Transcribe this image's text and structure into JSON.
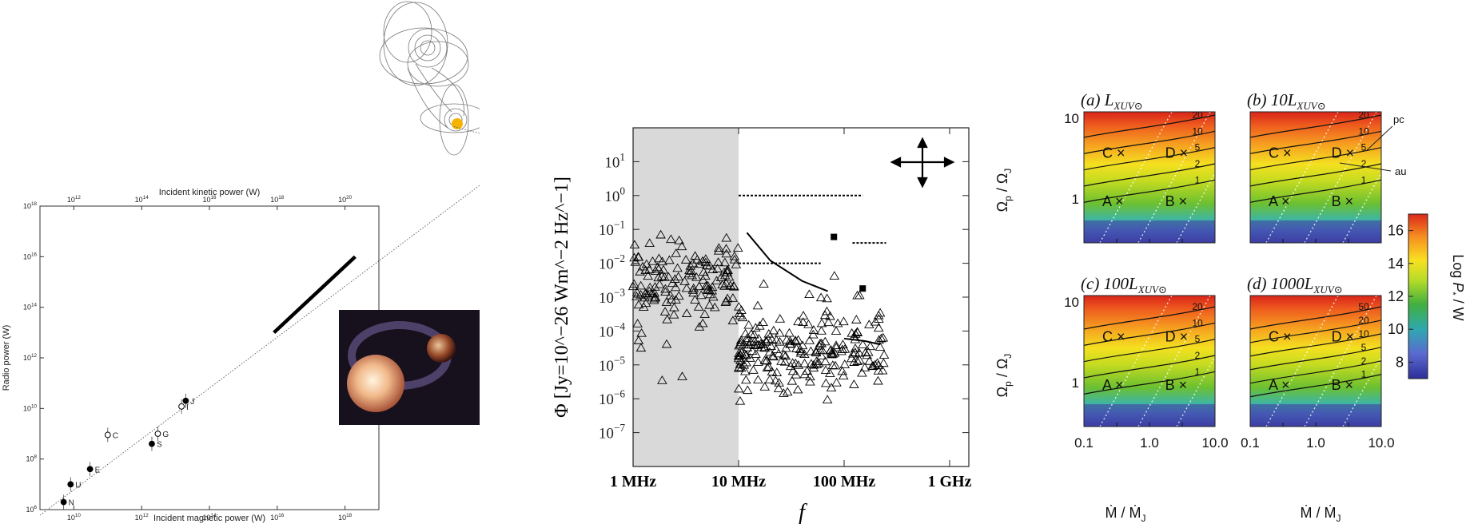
{
  "chart_data": [
    {
      "type": "scatter",
      "title": "",
      "xlabel": "Incident magnetic power (W)",
      "x2label": "Incident kinetic power (W)",
      "ylabel": "Radio power (W)",
      "xscale": "log",
      "yscale": "log",
      "xlim": [
        1000000000.0,
        1e+19
      ],
      "ylim": [
        1000000.0,
        1e+18
      ],
      "x2lim": [
        100000000000.0,
        1e+21
      ],
      "xticks": [
        "10^10",
        "10^12",
        "10^14",
        "10^16",
        "10^18"
      ],
      "x2ticks": [
        "10^12",
        "10^14",
        "10^16",
        "10^18",
        "10^20"
      ],
      "yticks": [
        "10^6",
        "10^8",
        "10^10",
        "10^12",
        "10^14",
        "10^16",
        "10^18"
      ],
      "points": [
        {
          "label": "N",
          "x": 5000000000.0,
          "y": 2000000.0,
          "filled": true
        },
        {
          "label": "U",
          "x": 8000000000.0,
          "y": 10000000.0,
          "filled": true
        },
        {
          "label": "E",
          "x": 30000000000.0,
          "y": 40000000.0,
          "filled": true
        },
        {
          "label": "S",
          "x": 2000000000000.0,
          "y": 400000000.0,
          "filled": true
        },
        {
          "label": "J",
          "x": 20000000000000.0,
          "y": 20000000000.0,
          "filled": true
        },
        {
          "label": "C",
          "x": 100000000000.0,
          "y": 900000000.0,
          "filled": false
        },
        {
          "label": "G",
          "x": 3000000000000.0,
          "y": 1000000000.0,
          "filled": false
        },
        {
          "label": "I",
          "x": 15000000000000.0,
          "y": 12000000000.0,
          "filled": false
        }
      ],
      "fit_line": {
        "x": [
          1000000000.0,
          2e+20
        ],
        "y": [
          600000.0,
          1e+17
        ]
      },
      "hot_jupiter_band": {
        "x": [
          8000000000000000.0,
          2e+18
        ],
        "y": [
          10000000000000.0,
          1e+16
        ]
      }
    },
    {
      "type": "scatter",
      "title": "",
      "xlabel": "f",
      "ylabel": "Φ [Jy=10^−26 Wm^−2 Hz^−1]",
      "xscale": "log",
      "yscale": "log",
      "xlim": [
        1,
        1000
      ],
      "ylim": [
        1e-08,
        100
      ],
      "xticks": [
        "1 MHz",
        "10 MHz",
        "100 MHz",
        "1 GHz"
      ],
      "yticks": [
        "10^1",
        "10^0",
        "10^-1",
        "10^-2",
        "10^-3",
        "10^-4",
        "10^-5",
        "10^-6",
        "10^-7"
      ],
      "shaded_region_x": [
        1,
        10
      ],
      "dashed_limits": [
        {
          "x": [
            10,
            150
          ],
          "y": 1.0
        },
        {
          "x": [
            10,
            60
          ],
          "y": 0.01
        },
        {
          "x": [
            120,
            250
          ],
          "y": 0.04
        }
      ],
      "filled_squares": [
        {
          "x": 80,
          "y": 0.06
        },
        {
          "x": 150,
          "y": 0.0018
        }
      ],
      "curves": [
        {
          "x": [
            12,
            20,
            40,
            70
          ],
          "y": [
            0.08,
            0.012,
            0.003,
            0.0015
          ]
        },
        {
          "x": [
            100,
            160,
            220
          ],
          "y": [
            6e-05,
            5e-05,
            4e-05
          ]
        }
      ]
    },
    {
      "type": "heatmap",
      "title": "",
      "panels": [
        {
          "label": "(a)",
          "title_main": "L",
          "title_sub": "XUV⊙",
          "contours": [
            "20",
            "10",
            "5",
            "2",
            "1"
          ]
        },
        {
          "label": "(b)",
          "title_main": "10L",
          "title_sub": "XUV⊙",
          "contours": [
            "20",
            "10",
            "5",
            "2",
            "1"
          ]
        },
        {
          "label": "(c)",
          "title_main": "100L",
          "title_sub": "XUV⊙",
          "contours": [
            "20",
            "10",
            "5",
            "2",
            "1"
          ]
        },
        {
          "label": "(d)",
          "title_main": "1000L",
          "title_sub": "XUV⊙",
          "contours": [
            "50",
            "20",
            "10",
            "5",
            "2",
            "1"
          ]
        }
      ],
      "markers": [
        "A",
        "B",
        "C",
        "D"
      ],
      "annotations": [
        "pc",
        "au"
      ],
      "xlabel": "Ṁ / Ṁ_J",
      "ylabel": "Ω_p / Ω_J",
      "xticks": [
        "0.1",
        "1.0",
        "10.0"
      ],
      "yticks": [
        "1",
        "10"
      ],
      "colorbar": {
        "label": "Log P_* / W",
        "ticks": [
          "8",
          "10",
          "12",
          "14",
          "16"
        ],
        "range": [
          7,
          17
        ]
      }
    }
  ],
  "colors": {
    "sun": "#f6b400",
    "grey_shade": "#d9d9d9"
  }
}
